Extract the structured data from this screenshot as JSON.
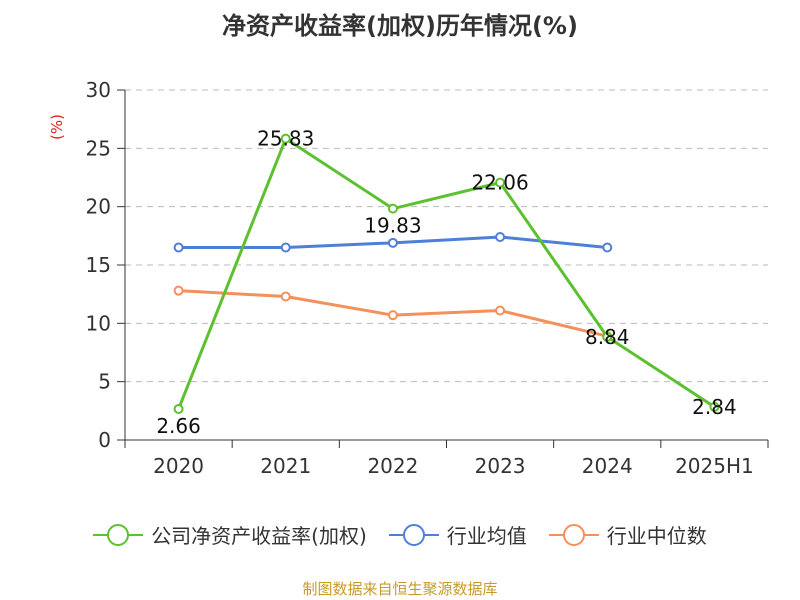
{
  "chart_data": {
    "type": "line",
    "title": "净资产收益率(加权)历年情况(%)",
    "ylabel": "(%)",
    "categories": [
      "2020",
      "2021",
      "2022",
      "2023",
      "2024",
      "2025H1"
    ],
    "ylim": [
      0,
      30
    ],
    "yticks": [
      0,
      5,
      10,
      15,
      20,
      25,
      30
    ],
    "grid": true,
    "legend_position": "bottom",
    "series": [
      {
        "name": "公司净资产收益率(加权)",
        "color": "#5cc12e",
        "values": [
          2.66,
          25.83,
          19.83,
          22.06,
          8.84,
          2.84
        ],
        "labels": [
          "2.66",
          "25.83",
          "19.83",
          "22.06",
          "8.84",
          "2.84"
        ]
      },
      {
        "name": "行业均值",
        "color": "#4f7fd8",
        "values": [
          16.5,
          16.5,
          16.9,
          17.4,
          16.5,
          null
        ]
      },
      {
        "name": "行业中位数",
        "color": "#f4905c",
        "values": [
          12.8,
          12.3,
          10.7,
          11.1,
          8.9,
          null
        ]
      }
    ]
  },
  "footer": {
    "source": "制图数据来自恒生聚源数据库"
  }
}
